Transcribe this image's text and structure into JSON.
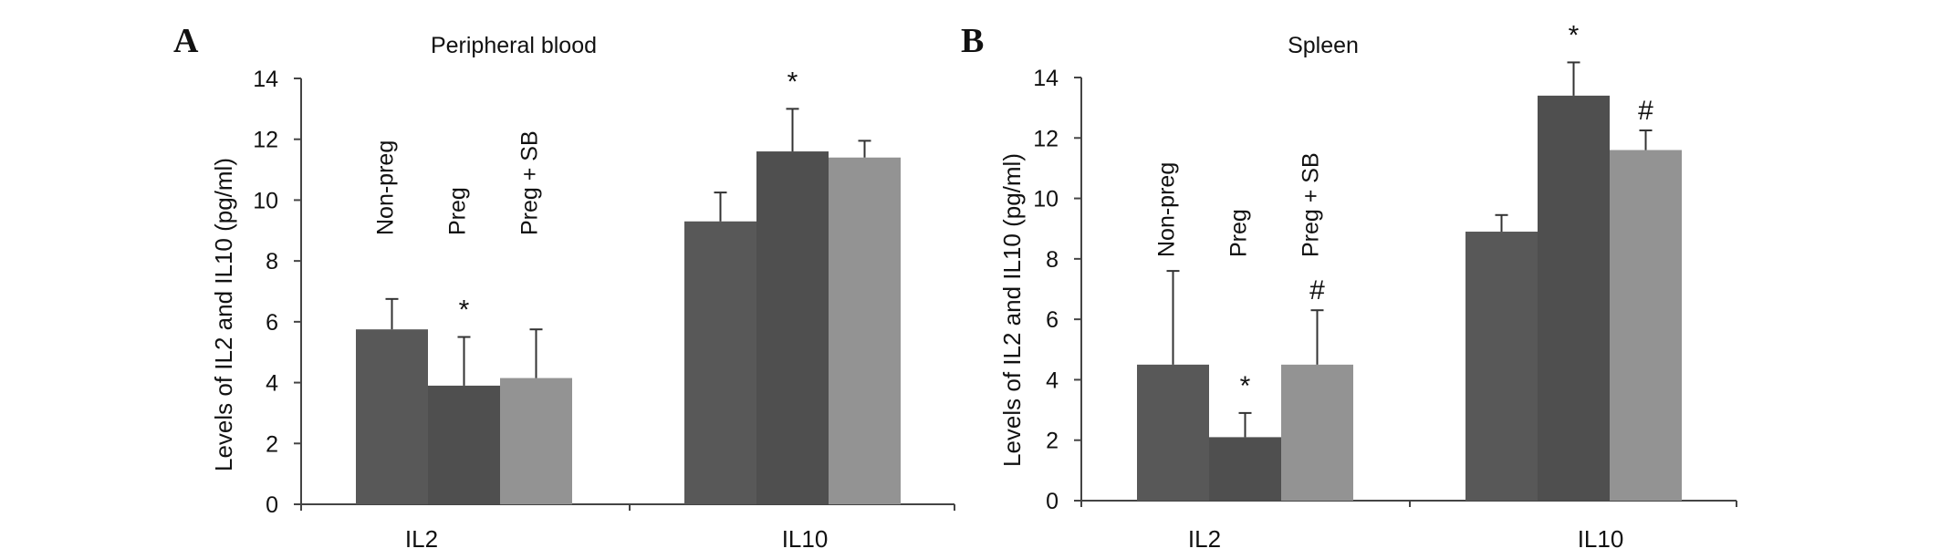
{
  "chart_data": [
    {
      "type": "bar",
      "panel": "A",
      "title": "Peripheral blood",
      "ylabel": "Levels of IL2 and IL10 (pg/ml)",
      "xlabel": "",
      "ylim": [
        0,
        14
      ],
      "yticks": [
        0,
        2,
        4,
        6,
        8,
        10,
        12,
        14
      ],
      "categories": [
        "IL2",
        "IL10"
      ],
      "legend": "none",
      "grid": false,
      "series": [
        {
          "name": "Non-preg",
          "color": "#585858",
          "values": [
            5.75,
            9.3
          ],
          "errors": [
            1.0,
            0.95
          ],
          "marks": [
            "",
            ""
          ]
        },
        {
          "name": "Preg",
          "color": "#4f4f4f",
          "values": [
            3.9,
            11.6
          ],
          "errors": [
            1.6,
            1.4
          ],
          "marks": [
            "*",
            "*"
          ]
        },
        {
          "name": "Preg + SB",
          "color": "#939393",
          "values": [
            4.15,
            11.4
          ],
          "errors": [
            1.6,
            0.55
          ],
          "marks": [
            "",
            ""
          ]
        }
      ]
    },
    {
      "type": "bar",
      "panel": "B",
      "title": "Spleen",
      "ylabel": "Levels of IL2 and IL10 (pg/ml)",
      "xlabel": "",
      "ylim": [
        0,
        14
      ],
      "yticks": [
        0,
        2,
        4,
        6,
        8,
        10,
        12,
        14
      ],
      "categories": [
        "IL2",
        "IL10"
      ],
      "legend": "none",
      "grid": false,
      "series": [
        {
          "name": "Non-preg",
          "color": "#585858",
          "values": [
            4.5,
            8.9
          ],
          "errors": [
            3.1,
            0.55
          ],
          "marks": [
            "",
            ""
          ]
        },
        {
          "name": "Preg",
          "color": "#4f4f4f",
          "values": [
            2.1,
            13.4
          ],
          "errors": [
            0.8,
            1.1
          ],
          "marks": [
            "*",
            "*"
          ]
        },
        {
          "name": "Preg + SB",
          "color": "#939393",
          "values": [
            4.5,
            11.6
          ],
          "errors": [
            1.8,
            0.65
          ],
          "marks": [
            "#",
            "#"
          ]
        }
      ]
    }
  ]
}
